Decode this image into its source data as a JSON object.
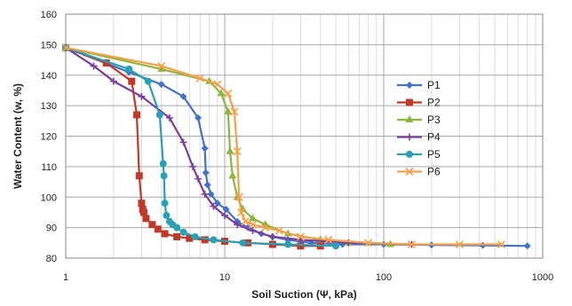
{
  "chart_data": {
    "type": "line",
    "title": "",
    "xlabel": "Soil Suction (Ψ, kPa)",
    "ylabel": "Water Content (w, %)",
    "x_scale": "log",
    "xlim": [
      1,
      1000
    ],
    "ylim": [
      80,
      160
    ],
    "x_ticks": [
      1,
      10,
      100,
      1000
    ],
    "x_tick_labels": [
      "1",
      "10",
      "100",
      "1000"
    ],
    "y_ticks": [
      80,
      90,
      100,
      110,
      120,
      130,
      140,
      150,
      160
    ],
    "y_tick_labels": [
      "80",
      "90",
      "100",
      "110",
      "120",
      "130",
      "140",
      "150",
      "160"
    ],
    "grid": true,
    "legend": "right",
    "series": [
      {
        "name": "P1",
        "color": "#4472c4",
        "marker": "diamond",
        "x": [
          1,
          2.5,
          4,
          5.5,
          6.8,
          7.5,
          7.6,
          7.8,
          8.2,
          9,
          10.2,
          12,
          14,
          17,
          20,
          25,
          35,
          55,
          100,
          200,
          420,
          800
        ],
        "y": [
          149,
          141,
          137,
          133,
          126,
          116,
          108,
          104,
          101,
          98,
          96,
          92,
          90,
          88,
          87,
          86,
          85,
          84.5,
          84.5,
          84.3,
          84.2,
          84
        ]
      },
      {
        "name": "P2",
        "color": "#c0392b",
        "marker": "square",
        "x": [
          1,
          1.8,
          2.6,
          2.8,
          2.9,
          3.0,
          3.05,
          3.1,
          3.2,
          3.5,
          3.8,
          4.2,
          5,
          6,
          7.5,
          10,
          14,
          20,
          30,
          40
        ],
        "y": [
          149,
          144,
          138,
          127,
          107,
          98,
          96,
          95,
          93,
          91,
          89.5,
          88,
          87,
          86.5,
          86,
          85.5,
          85,
          84.5,
          84,
          84
        ]
      },
      {
        "name": "P3",
        "color": "#8db63c",
        "marker": "triangle",
        "x": [
          1,
          4,
          8,
          9.5,
          10.5,
          10.8,
          11.2,
          12,
          13,
          15,
          18,
          25,
          40,
          60,
          110
        ],
        "y": [
          149,
          142,
          138,
          134,
          128,
          115,
          107,
          100,
          96,
          93,
          91,
          88,
          86,
          85,
          84.5
        ]
      },
      {
        "name": "P4",
        "color": "#7b3f9d",
        "marker": "plus",
        "x": [
          1,
          1.5,
          2,
          3,
          4.5,
          5.5,
          6.3,
          6.8,
          7.5,
          8.5,
          10,
          12,
          15,
          20,
          30,
          60,
          150
        ],
        "y": [
          149,
          143,
          138,
          133,
          126,
          118,
          110,
          106,
          101,
          97,
          94,
          91,
          89,
          87,
          86,
          85,
          84.5
        ]
      },
      {
        "name": "P5",
        "color": "#2aa0b5",
        "marker": "circle",
        "x": [
          1,
          2.5,
          3.3,
          3.9,
          4.1,
          4.15,
          4.2,
          4.3,
          4.5,
          4.7,
          5,
          5.5,
          6.5,
          8.5,
          13,
          25,
          50
        ],
        "y": [
          149,
          142,
          138,
          127,
          111,
          107,
          98,
          94,
          92,
          91,
          90,
          88.5,
          87,
          86,
          85,
          84.5,
          84
        ]
      },
      {
        "name": "P6",
        "color": "#f5a04a",
        "marker": "x",
        "x": [
          1,
          4,
          7,
          9,
          10.5,
          11.5,
          12,
          12.3,
          12.7,
          13.5,
          15,
          18,
          22,
          30,
          45,
          80,
          150,
          300,
          550
        ],
        "y": [
          149,
          143,
          139,
          137,
          134,
          128,
          115,
          100,
          95,
          92,
          91,
          90,
          89,
          87,
          86,
          85,
          84.5,
          84.5,
          84.5
        ]
      }
    ]
  }
}
